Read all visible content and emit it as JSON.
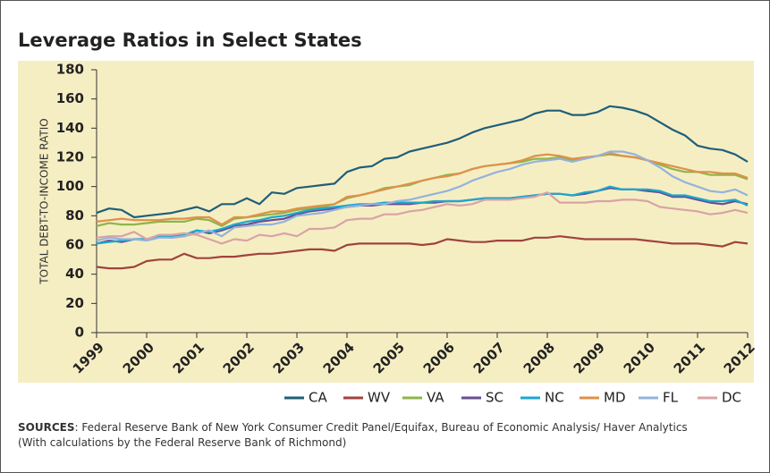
{
  "chart_data": {
    "type": "line",
    "title": "Leverage Ratios in Select States",
    "y_label": "TOTAL DEBT-TO-INCOME RATIO",
    "source": {
      "label": "SOURCES",
      "text": ": Federal Reserve Bank of New York Consumer Credit Panel/Equifax, Bureau of Economic Analysis/ Haver Analytics (With calculations by the Federal Reserve Bank of Richmond)"
    },
    "x": [
      1999,
      1999.25,
      1999.5,
      1999.75,
      2000,
      2000.25,
      2000.5,
      2000.75,
      2001,
      2001.25,
      2001.5,
      2001.75,
      2002,
      2002.25,
      2002.5,
      2002.75,
      2003,
      2003.25,
      2003.5,
      2003.75,
      2004,
      2004.25,
      2004.5,
      2004.75,
      2005,
      2005.25,
      2005.5,
      2005.75,
      2006,
      2006.25,
      2006.5,
      2006.75,
      2007,
      2007.25,
      2007.5,
      2007.75,
      2008,
      2008.25,
      2008.5,
      2008.75,
      2009,
      2009.25,
      2009.5,
      2009.75,
      2010,
      2010.25,
      2010.5,
      2010.75,
      2011,
      2011.25,
      2011.5,
      2011.75,
      2012
    ],
    "xlim": [
      1999,
      2012
    ],
    "xticks": [
      1999,
      2000,
      2001,
      2002,
      2003,
      2004,
      2005,
      2006,
      2007,
      2008,
      2009,
      2010,
      2011,
      2012
    ],
    "ylim": [
      0,
      180
    ],
    "yticks": [
      0,
      20,
      40,
      60,
      80,
      100,
      120,
      140,
      160,
      180
    ],
    "legend": "bottom-right",
    "series": [
      {
        "name": "CA",
        "color": "#1f5f7a",
        "values": [
          82,
          85,
          84,
          79,
          80,
          81,
          82,
          84,
          86,
          83,
          88,
          88,
          92,
          88,
          96,
          95,
          99,
          100,
          101,
          102,
          110,
          113,
          114,
          119,
          120,
          124,
          126,
          128,
          130,
          133,
          137,
          140,
          142,
          144,
          146,
          150,
          152,
          152,
          149,
          149,
          151,
          155,
          154,
          152,
          149,
          144,
          139,
          135,
          128,
          126,
          125,
          122,
          117
        ]
      },
      {
        "name": "WV",
        "color": "#a0433e",
        "values": [
          45,
          44,
          44,
          45,
          49,
          50,
          50,
          54,
          51,
          51,
          52,
          52,
          53,
          54,
          54,
          55,
          56,
          57,
          57,
          56,
          60,
          61,
          61,
          61,
          61,
          61,
          60,
          61,
          64,
          63,
          62,
          62,
          63,
          63,
          63,
          65,
          65,
          66,
          65,
          64,
          64,
          64,
          64,
          64,
          63,
          62,
          61,
          61,
          61,
          60,
          59,
          62,
          61
        ]
      },
      {
        "name": "VA",
        "color": "#8db54a",
        "values": [
          73,
          75,
          74,
          74,
          75,
          76,
          76,
          76,
          78,
          77,
          73,
          78,
          79,
          80,
          81,
          82,
          84,
          85,
          86,
          88,
          92,
          94,
          96,
          99,
          100,
          101,
          104,
          106,
          108,
          109,
          112,
          114,
          115,
          116,
          117,
          119,
          119,
          120,
          118,
          119,
          121,
          122,
          121,
          120,
          118,
          115,
          112,
          110,
          110,
          108,
          108,
          108,
          105
        ]
      },
      {
        "name": "SC",
        "color": "#6a4c93",
        "values": [
          61,
          63,
          62,
          64,
          64,
          66,
          65,
          66,
          70,
          68,
          70,
          73,
          74,
          76,
          77,
          78,
          81,
          83,
          84,
          85,
          86,
          87,
          87,
          88,
          88,
          88,
          89,
          89,
          90,
          90,
          91,
          92,
          92,
          92,
          93,
          94,
          95,
          95,
          94,
          95,
          97,
          99,
          98,
          98,
          97,
          96,
          93,
          93,
          91,
          89,
          88,
          90,
          88
        ]
      },
      {
        "name": "NC",
        "color": "#1ba8cf",
        "values": [
          61,
          62,
          63,
          64,
          64,
          66,
          66,
          67,
          70,
          69,
          71,
          74,
          76,
          77,
          79,
          80,
          82,
          84,
          85,
          86,
          87,
          88,
          88,
          89,
          89,
          89,
          89,
          90,
          90,
          90,
          91,
          92,
          92,
          92,
          93,
          94,
          95,
          95,
          94,
          96,
          97,
          100,
          98,
          98,
          98,
          97,
          94,
          94,
          92,
          90,
          90,
          91,
          87
        ]
      },
      {
        "name": "MD",
        "color": "#e0904a",
        "values": [
          76,
          77,
          78,
          77,
          77,
          77,
          78,
          78,
          79,
          79,
          74,
          79,
          79,
          81,
          83,
          83,
          85,
          86,
          87,
          88,
          93,
          94,
          96,
          98,
          100,
          102,
          104,
          106,
          107,
          109,
          112,
          114,
          115,
          116,
          118,
          121,
          122,
          121,
          119,
          120,
          121,
          123,
          121,
          120,
          118,
          116,
          114,
          112,
          110,
          110,
          109,
          109,
          106
        ]
      },
      {
        "name": "FL",
        "color": "#93b3dd",
        "values": [
          63,
          65,
          64,
          64,
          63,
          65,
          65,
          66,
          68,
          70,
          66,
          72,
          73,
          74,
          74,
          76,
          80,
          81,
          82,
          84,
          86,
          87,
          88,
          88,
          90,
          91,
          93,
          95,
          97,
          100,
          104,
          107,
          110,
          112,
          115,
          117,
          118,
          119,
          117,
          119,
          121,
          124,
          124,
          122,
          118,
          113,
          107,
          103,
          100,
          97,
          96,
          98,
          94
        ]
      },
      {
        "name": "DC",
        "color": "#d9a3a6",
        "values": [
          65,
          66,
          66,
          69,
          64,
          67,
          67,
          68,
          67,
          64,
          61,
          64,
          63,
          67,
          66,
          68,
          66,
          71,
          71,
          72,
          77,
          78,
          78,
          81,
          81,
          83,
          84,
          86,
          88,
          87,
          88,
          91,
          91,
          91,
          92,
          93,
          96,
          89,
          89,
          89,
          90,
          90,
          91,
          91,
          90,
          86,
          85,
          84,
          83,
          81,
          82,
          84,
          82
        ]
      }
    ]
  }
}
